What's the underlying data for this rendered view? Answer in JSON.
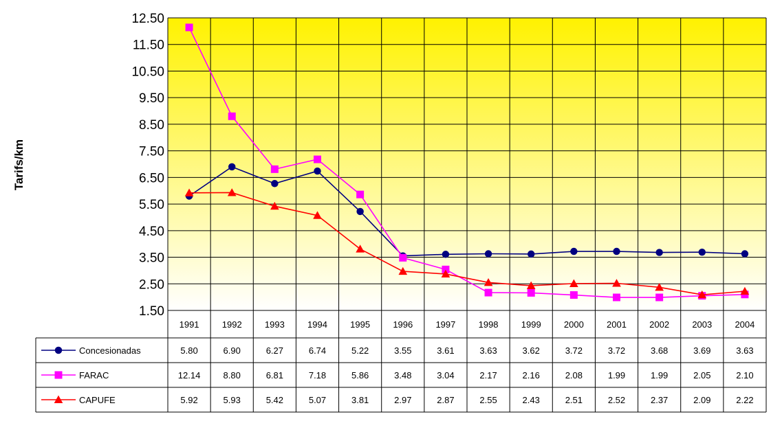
{
  "chart_data": {
    "type": "line",
    "title": "",
    "xlabel": "",
    "ylabel": "Tarifs/km",
    "ylim": [
      1.5,
      12.5
    ],
    "y_ticks": [
      "12.50",
      "11.50",
      "10.50",
      "9.50",
      "8.50",
      "7.50",
      "6.50",
      "5.50",
      "4.50",
      "3.50",
      "2.50",
      "1.50"
    ],
    "categories": [
      "1991",
      "1992",
      "1993",
      "1994",
      "1995",
      "1996",
      "1997",
      "1998",
      "1999",
      "2000",
      "2001",
      "2002",
      "2003",
      "2004"
    ],
    "grid": true,
    "legend": "table-below",
    "background": {
      "top": "#fff200",
      "bottom": "#ffffff"
    },
    "series": [
      {
        "name": "Concesionadas",
        "color": "#000080",
        "marker": "circle",
        "values": [
          5.8,
          6.9,
          6.27,
          6.74,
          5.22,
          3.55,
          3.61,
          3.63,
          3.62,
          3.72,
          3.72,
          3.68,
          3.69,
          3.63
        ],
        "labels": [
          "5.80",
          "6.90",
          "6.27",
          "6.74",
          "5.22",
          "3.55",
          "3.61",
          "3.63",
          "3.62",
          "3.72",
          "3.72",
          "3.68",
          "3.69",
          "3.63"
        ]
      },
      {
        "name": "FARAC",
        "color": "#ff00ff",
        "marker": "square",
        "values": [
          12.14,
          8.8,
          6.81,
          7.18,
          5.86,
          3.48,
          3.04,
          2.17,
          2.16,
          2.08,
          1.99,
          1.99,
          2.05,
          2.1
        ],
        "labels": [
          "12.14",
          "8.80",
          "6.81",
          "7.18",
          "5.86",
          "3.48",
          "3.04",
          "2.17",
          "2.16",
          "2.08",
          "1.99",
          "1.99",
          "2.05",
          "2.10"
        ]
      },
      {
        "name": "CAPUFE",
        "color": "#ff0000",
        "marker": "triangle",
        "values": [
          5.92,
          5.93,
          5.42,
          5.07,
          3.81,
          2.97,
          2.87,
          2.55,
          2.43,
          2.51,
          2.52,
          2.37,
          2.09,
          2.22
        ],
        "labels": [
          "5.92",
          "5.93",
          "5.42",
          "5.07",
          "3.81",
          "2.97",
          "2.87",
          "2.55",
          "2.43",
          "2.51",
          "2.52",
          "2.37",
          "2.09",
          "2.22"
        ]
      }
    ]
  }
}
